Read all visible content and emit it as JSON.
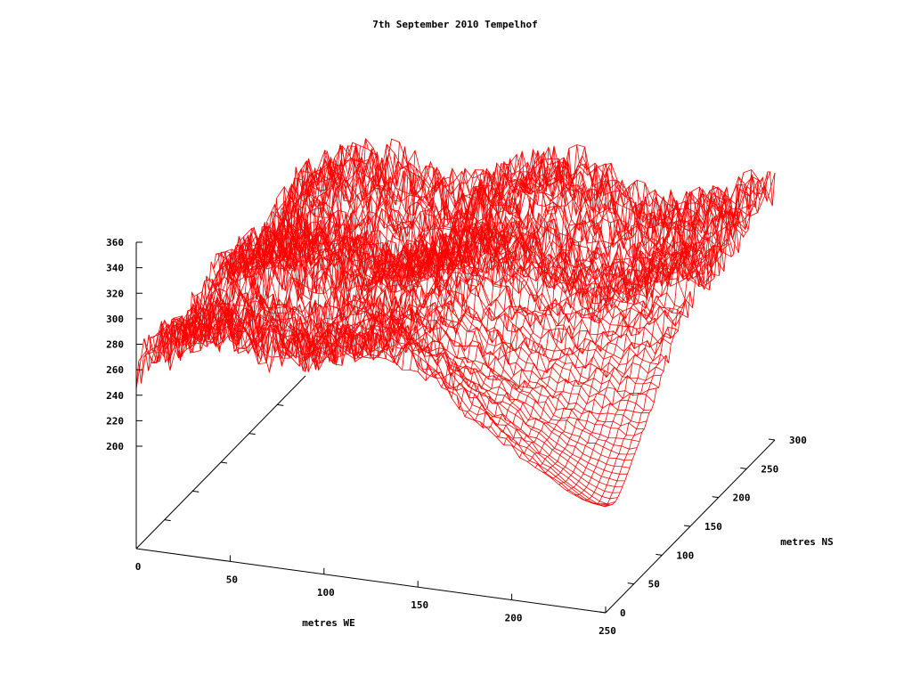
{
  "chart_data": {
    "type": "surface",
    "title": "7th September 2010 Tempelhof",
    "xlabel": "metres WE",
    "ylabel": "metres NS",
    "zlabel": "",
    "xlim": [
      0,
      250
    ],
    "ylim": [
      0,
      300
    ],
    "zlim": [
      200,
      360
    ],
    "x_ticks": [
      "0",
      "50",
      "100",
      "150",
      "200",
      "250"
    ],
    "y_ticks": [
      "0",
      "50",
      "100",
      "150",
      "200",
      "250",
      "300"
    ],
    "z_ticks": [
      "200",
      "220",
      "240",
      "260",
      "280",
      "300",
      "320",
      "340",
      "360"
    ],
    "grid": false,
    "legend": "none",
    "line_color": "#ff0000",
    "grid_cols": 60,
    "grid_rows": 70,
    "surface_profile": {
      "description_values": "approximate elevation (z) by region, in data units",
      "nw_corner_z": 245,
      "mean_plateau_z": 300,
      "peak_z": 358,
      "peak_at": [
        235,
        170
      ],
      "depression_min_z": 195,
      "depression_at": [
        245,
        15
      ]
    }
  }
}
